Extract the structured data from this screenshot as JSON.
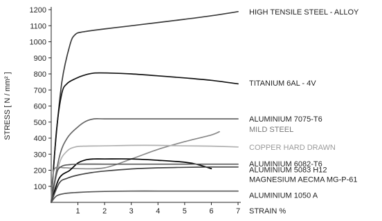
{
  "chart_data": {
    "type": "line",
    "xlabel": "STRAIN %",
    "ylabel": "STRESS [ N / mm² ]",
    "xlim": [
      0,
      7
    ],
    "ylim": [
      0,
      1200
    ],
    "x_ticks": [
      1,
      2,
      3,
      4,
      5,
      6,
      7
    ],
    "y_ticks": [
      100,
      200,
      300,
      400,
      500,
      600,
      700,
      800,
      900,
      1000,
      1100,
      1200
    ],
    "grid": false,
    "legend": "labels at right of each curve",
    "series": [
      {
        "name": "HIGH TENSILE  STEEL - ALLOY",
        "color": "#3a3a3a",
        "points": [
          [
            0,
            0
          ],
          [
            0.15,
            350
          ],
          [
            0.4,
            750
          ],
          [
            0.7,
            980
          ],
          [
            0.9,
            1045
          ],
          [
            1.2,
            1062
          ],
          [
            2,
            1080
          ],
          [
            3,
            1100
          ],
          [
            4,
            1120
          ],
          [
            5,
            1140
          ],
          [
            6,
            1162
          ],
          [
            7,
            1188
          ]
        ]
      },
      {
        "name": "TITANIUM 6AL - 4V",
        "color": "#111111",
        "points": [
          [
            0,
            0
          ],
          [
            0.2,
            450
          ],
          [
            0.4,
            680
          ],
          [
            0.6,
            740
          ],
          [
            0.9,
            770
          ],
          [
            1.2,
            790
          ],
          [
            1.6,
            805
          ],
          [
            2.2,
            805
          ],
          [
            3,
            800
          ],
          [
            4,
            788
          ],
          [
            5,
            775
          ],
          [
            6,
            760
          ],
          [
            7,
            738
          ]
        ]
      },
      {
        "name": "ALUMINIUM 7075-T6",
        "color": "#666666",
        "points": [
          [
            0,
            0
          ],
          [
            0.3,
            280
          ],
          [
            0.6,
            400
          ],
          [
            1.0,
            470
          ],
          [
            1.3,
            505
          ],
          [
            1.6,
            520
          ],
          [
            2,
            520
          ],
          [
            3,
            520
          ],
          [
            4,
            520
          ],
          [
            5,
            520
          ],
          [
            6,
            520
          ],
          [
            7,
            520
          ]
        ]
      },
      {
        "name": "MILD STEEL",
        "color": "#888888",
        "points": [
          [
            0,
            0
          ],
          [
            0.1,
            200
          ],
          [
            0.5,
            215
          ],
          [
            1,
            210
          ],
          [
            2,
            215
          ],
          [
            3,
            270
          ],
          [
            4,
            330
          ],
          [
            5,
            378
          ],
          [
            6,
            420
          ],
          [
            6.3,
            440
          ]
        ]
      },
      {
        "name": "COPPER HARD DRAWN",
        "color": "#b0b0b0",
        "points": [
          [
            0,
            0
          ],
          [
            0.3,
            240
          ],
          [
            0.6,
            320
          ],
          [
            0.9,
            345
          ],
          [
            1.2,
            350
          ],
          [
            2,
            352
          ],
          [
            3,
            355
          ],
          [
            4,
            355
          ],
          [
            5,
            352
          ],
          [
            6,
            350
          ],
          [
            7,
            345
          ]
        ]
      },
      {
        "name": "ALUMINIUM 6082-T6",
        "color": "#000000",
        "points": [
          [
            0,
            0
          ],
          [
            0.3,
            150
          ],
          [
            0.7,
            200
          ],
          [
            1,
            245
          ],
          [
            1.3,
            265
          ],
          [
            1.6,
            270
          ],
          [
            2,
            270
          ],
          [
            3,
            270
          ],
          [
            4,
            262
          ],
          [
            5,
            250
          ],
          [
            5.5,
            235
          ],
          [
            6,
            210
          ]
        ]
      },
      {
        "name": "ALUMINIUM 5083 H12",
        "color": "#555555",
        "points": [
          [
            0,
            0
          ],
          [
            0.2,
            180
          ],
          [
            0.4,
            225
          ],
          [
            0.7,
            235
          ],
          [
            1,
            238
          ],
          [
            2,
            238
          ],
          [
            3,
            238
          ],
          [
            4,
            238
          ],
          [
            5,
            238
          ],
          [
            6,
            238
          ],
          [
            7,
            238
          ]
        ]
      },
      {
        "name": "MAGNESIUM AECMA MG-P-61",
        "color": "#444444",
        "points": [
          [
            0,
            0
          ],
          [
            0.3,
            120
          ],
          [
            0.6,
            150
          ],
          [
            1,
            170
          ],
          [
            1.5,
            185
          ],
          [
            2,
            195
          ],
          [
            3,
            208
          ],
          [
            4,
            215
          ],
          [
            5,
            218
          ],
          [
            6,
            220
          ],
          [
            7,
            220
          ]
        ]
      },
      {
        "name": "ALUMINIUM 1050 A",
        "color": "#555555",
        "points": [
          [
            0,
            0
          ],
          [
            0.2,
            40
          ],
          [
            0.5,
            55
          ],
          [
            1,
            62
          ],
          [
            1.5,
            66
          ],
          [
            2,
            68
          ],
          [
            3,
            70
          ],
          [
            4,
            70
          ],
          [
            5,
            70
          ],
          [
            6,
            70
          ],
          [
            7,
            70
          ]
        ]
      }
    ],
    "label_y_values": [
      1188,
      745,
      520,
      455,
      345,
      240,
      205,
      145,
      45
    ]
  }
}
